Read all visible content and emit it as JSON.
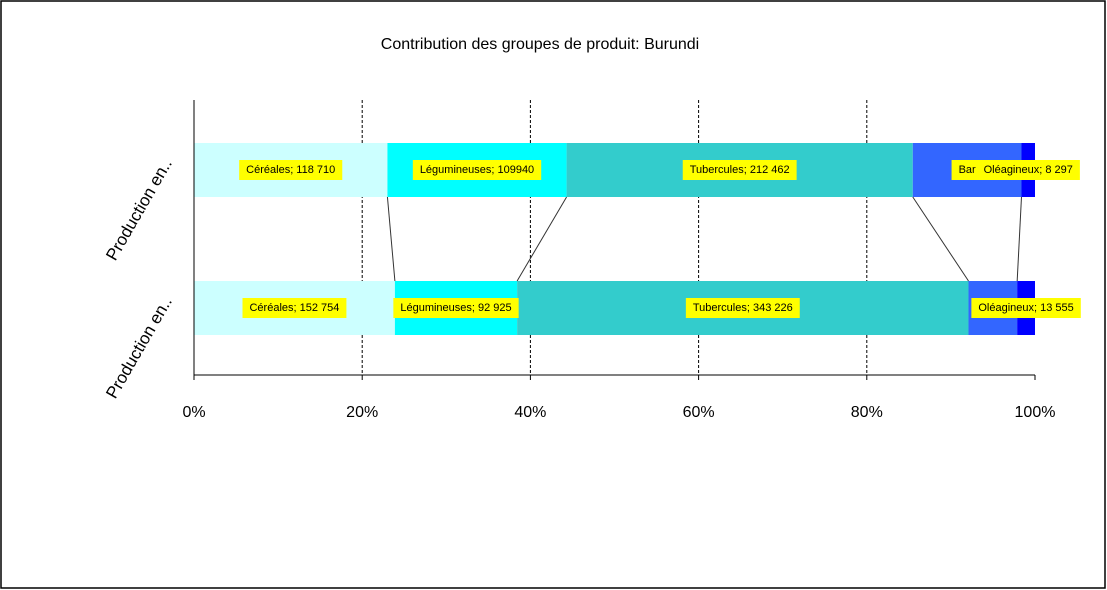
{
  "chart_data": {
    "type": "stacked-bar-100",
    "title": "Contribution des groupes de produit: Burundi",
    "categories": [
      "Production en..",
      "Production en.."
    ],
    "series": [
      {
        "color": "#ccffff",
        "values": [
          118710,
          152754
        ],
        "value_labels": [
          "Céréales; 118 710",
          "Céréales; 152 754"
        ]
      },
      {
        "color": "#00ffff",
        "values": [
          109940,
          92925
        ],
        "value_labels": [
          "Légumineuses; 109940",
          "Légumineuses; 92 925"
        ]
      },
      {
        "color": "#33cccc",
        "values": [
          212462,
          343226
        ],
        "value_labels": [
          "Tubercules; 212 462",
          "Tubercules; 343 226"
        ]
      },
      {
        "color": "#3366ff",
        "values": [
          66700,
          37000
        ],
        "value_labels": [
          "Bar",
          null
        ]
      },
      {
        "color": "#0000ff",
        "values": [
          8297,
          13555
        ],
        "value_labels": [
          "Oléagineux; 8 297",
          "Oléagineux; 13 555"
        ]
      }
    ],
    "xlim": [
      0,
      100
    ],
    "xticks": [
      {
        "value": 0,
        "label": "0%"
      },
      {
        "value": 20,
        "label": "20%"
      },
      {
        "value": 40,
        "label": "40%"
      },
      {
        "value": 60,
        "label": "60%"
      },
      {
        "value": 80,
        "label": "80%"
      },
      {
        "value": 100,
        "label": "100%"
      }
    ],
    "grid": true
  }
}
